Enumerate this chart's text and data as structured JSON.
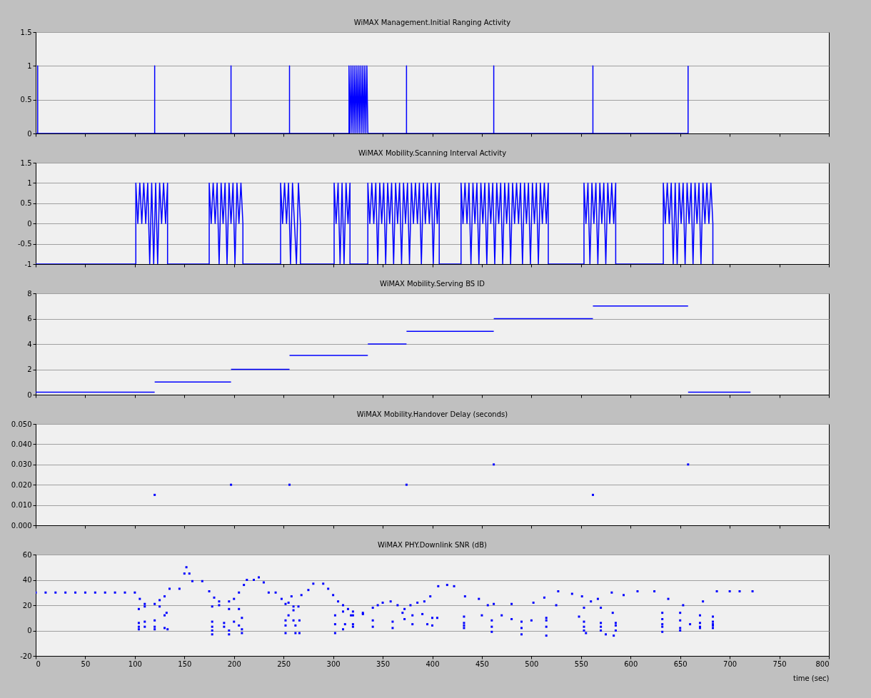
{
  "chart_data": [
    {
      "type": "line",
      "title": "WiMAX Management.Initial Ranging Activity",
      "xlim": [
        0,
        800
      ],
      "xticks": [
        0,
        50,
        100,
        150,
        200,
        250,
        300,
        350,
        400,
        450,
        500,
        550,
        600,
        650,
        700,
        750,
        800
      ],
      "ylim": [
        0,
        1.5
      ],
      "yticks": [
        0,
        0.5,
        1,
        1.5
      ],
      "grid": "y",
      "tick_labels": "y",
      "series": [
        {
          "color": "#0000ff",
          "x": [
            0,
            2,
            2,
            2,
            120,
            120,
            120,
            197,
            197,
            197,
            256,
            256,
            256,
            316,
            316,
            317,
            318,
            319,
            320,
            321,
            322,
            323,
            324,
            325,
            326,
            327,
            328,
            329,
            330,
            331,
            332,
            333,
            334,
            335,
            374,
            374,
            374,
            462,
            462,
            462,
            562,
            562,
            562,
            658,
            658
          ],
          "values": [
            0,
            0,
            1,
            0,
            0,
            1,
            0,
            0,
            1,
            0,
            0,
            1,
            0,
            0,
            1,
            0,
            1,
            0,
            1,
            0,
            1,
            0,
            1,
            0,
            1,
            0,
            1,
            0,
            1,
            0,
            1,
            0,
            1,
            0,
            0,
            1,
            0,
            0,
            1,
            0,
            0,
            1,
            0,
            0,
            1
          ]
        }
      ]
    },
    {
      "type": "line",
      "title": "WiMAX Mobility.Scanning Interval Activity",
      "xlim": [
        0,
        800
      ],
      "xticks": [
        0,
        50,
        100,
        150,
        200,
        250,
        300,
        350,
        400,
        450,
        500,
        550,
        600,
        650,
        700,
        750,
        800
      ],
      "ylim": [
        -1,
        1.5
      ],
      "yticks": [
        -1,
        -0.5,
        0,
        0.5,
        1,
        1.5
      ],
      "grid": "y",
      "tick_labels": "y",
      "series": [
        {
          "color": "#0000ff",
          "x": [
            0,
            101,
            101,
            103,
            105,
            107,
            109,
            111,
            113,
            115,
            117,
            119,
            121,
            123,
            125,
            127,
            129,
            131,
            133,
            133,
            175,
            175,
            177,
            179,
            181,
            183,
            185,
            187,
            189,
            191,
            193,
            195,
            197,
            199,
            201,
            203,
            205,
            207,
            209,
            209,
            247,
            247,
            249,
            251,
            253,
            255,
            257,
            259,
            261,
            263,
            265,
            267,
            267,
            301,
            301,
            303,
            305,
            307,
            309,
            311,
            313,
            315,
            317,
            317,
            335,
            335,
            337,
            339,
            341,
            343,
            345,
            347,
            349,
            351,
            353,
            355,
            357,
            359,
            361,
            363,
            365,
            367,
            369,
            371,
            373,
            375,
            377,
            379,
            381,
            383,
            385,
            387,
            389,
            391,
            393,
            395,
            397,
            399,
            401,
            403,
            405,
            407,
            407,
            429,
            429,
            431,
            433,
            435,
            437,
            439,
            441,
            443,
            445,
            447,
            449,
            451,
            453,
            455,
            457,
            459,
            461,
            463,
            465,
            467,
            469,
            471,
            473,
            475,
            477,
            479,
            481,
            483,
            485,
            487,
            489,
            491,
            493,
            495,
            497,
            499,
            501,
            503,
            505,
            507,
            509,
            511,
            513,
            515,
            517,
            517,
            553,
            553,
            555,
            557,
            559,
            561,
            563,
            565,
            567,
            569,
            571,
            573,
            575,
            577,
            579,
            581,
            583,
            585,
            585,
            633,
            633,
            635,
            637,
            639,
            641,
            643,
            645,
            647,
            649,
            651,
            653,
            655,
            657,
            659,
            661,
            663,
            665,
            667,
            669,
            671,
            673,
            675,
            677,
            679,
            681,
            683,
            683
          ],
          "values": [
            -1,
            -1,
            1,
            0,
            1,
            0,
            1,
            0,
            1,
            -1,
            1,
            -1,
            1,
            -1,
            1,
            0,
            1,
            0,
            1,
            -1,
            -1,
            1,
            0,
            1,
            0,
            1,
            -1,
            1,
            0,
            1,
            -1,
            1,
            0,
            1,
            -1,
            1,
            0,
            1,
            0,
            -1,
            -1,
            1,
            0,
            1,
            0,
            1,
            -1,
            1,
            0,
            -1,
            1,
            0,
            -1,
            -1,
            1,
            0,
            1,
            -1,
            1,
            -1,
            1,
            0,
            1,
            -1,
            -1,
            1,
            0,
            1,
            0,
            1,
            -1,
            1,
            0,
            1,
            -1,
            1,
            0,
            1,
            -1,
            1,
            0,
            1,
            -1,
            1,
            0,
            1,
            -1,
            1,
            0,
            1,
            0,
            1,
            -1,
            1,
            0,
            1,
            0,
            1,
            -1,
            1,
            0,
            1,
            -1,
            -1,
            1,
            0,
            1,
            0,
            1,
            -1,
            1,
            0,
            1,
            -1,
            1,
            0,
            1,
            -1,
            1,
            0,
            1,
            -1,
            1,
            0,
            1,
            -1,
            1,
            0,
            1,
            -1,
            1,
            0,
            1,
            0,
            1,
            -1,
            1,
            0,
            1,
            -1,
            1,
            0,
            1,
            -1,
            1,
            0,
            1,
            0,
            1,
            -1,
            -1,
            1,
            0,
            1,
            -1,
            1,
            0,
            1,
            -1,
            1,
            0,
            1,
            -1,
            1,
            0,
            1,
            0,
            1,
            -1,
            -1,
            1,
            0,
            1,
            0,
            1,
            -1,
            1,
            -1,
            1,
            0,
            1,
            -1,
            1,
            0,
            1,
            -1,
            1,
            0,
            1,
            -1,
            1,
            0,
            1,
            0,
            1,
            0,
            -1
          ]
        }
      ]
    },
    {
      "type": "line",
      "title": "WiMAX Mobility.Serving BS ID",
      "xlim": [
        0,
        800
      ],
      "xticks": [
        0,
        50,
        100,
        150,
        200,
        250,
        300,
        350,
        400,
        450,
        500,
        550,
        600,
        650,
        700,
        750,
        800
      ],
      "ylim": [
        0,
        8
      ],
      "yticks": [
        0,
        2,
        4,
        6,
        8
      ],
      "grid": "y",
      "tick_labels": "y",
      "series": [
        {
          "color": "#0000ff",
          "x": [
            0,
            120
          ],
          "values": [
            0.2,
            0.2
          ]
        },
        {
          "color": "#0000ff",
          "x": [
            120,
            197
          ],
          "values": [
            1,
            1
          ]
        },
        {
          "color": "#0000ff",
          "x": [
            197,
            256
          ],
          "values": [
            2,
            2
          ]
        },
        {
          "color": "#0000ff",
          "x": [
            256,
            335
          ],
          "values": [
            3.1,
            3.1
          ]
        },
        {
          "color": "#0000ff",
          "x": [
            335,
            374
          ],
          "values": [
            4,
            4
          ]
        },
        {
          "color": "#0000ff",
          "x": [
            374,
            462
          ],
          "values": [
            5,
            5
          ]
        },
        {
          "color": "#0000ff",
          "x": [
            462,
            562
          ],
          "values": [
            6,
            6
          ]
        },
        {
          "color": "#0000ff",
          "x": [
            562,
            658
          ],
          "values": [
            7,
            7
          ]
        },
        {
          "color": "#0000ff",
          "x": [
            658,
            721
          ],
          "values": [
            0.2,
            0.2
          ]
        }
      ]
    },
    {
      "type": "scatter",
      "title": "WiMAX Mobility.Handover Delay (seconds)",
      "xlim": [
        0,
        800
      ],
      "xticks": [
        0,
        50,
        100,
        150,
        200,
        250,
        300,
        350,
        400,
        450,
        500,
        550,
        600,
        650,
        700,
        750,
        800
      ],
      "ylim": [
        0,
        0.05
      ],
      "yticks": [
        {
          "value": 0,
          "label": "0.000"
        },
        {
          "value": 0.01,
          "label": "0.010"
        },
        {
          "value": 0.02,
          "label": "0.020"
        },
        {
          "value": 0.03,
          "label": "0.030"
        },
        {
          "value": 0.04,
          "label": "0.040"
        },
        {
          "value": 0.05,
          "label": "0.050"
        }
      ],
      "grid": "y",
      "tick_labels": "y",
      "marker": "square",
      "series": [
        {
          "color": "#0000ff",
          "x": [
            120,
            197,
            256,
            374,
            462,
            562,
            658
          ],
          "values": [
            0.015,
            0.02,
            0.02,
            0.02,
            0.03,
            0.015,
            0.03
          ]
        }
      ]
    },
    {
      "type": "scatter",
      "title": "WiMAX PHY.Downlink SNR (dB)",
      "xlabel": "time (sec)",
      "xlim": [
        0,
        800
      ],
      "xticks": [
        0,
        50,
        100,
        150,
        200,
        250,
        300,
        350,
        400,
        450,
        500,
        550,
        600,
        650,
        700,
        750,
        800
      ],
      "ylim": [
        -20,
        60
      ],
      "yticks": [
        -20,
        0,
        20,
        40,
        60
      ],
      "grid": "y",
      "marker": "square",
      "series": [
        {
          "color": "#0000ff",
          "x": [
            0,
            10,
            20,
            30,
            40,
            50,
            60,
            70,
            80,
            90,
            100,
            105,
            110,
            120,
            125,
            130,
            135,
            145,
            150,
            152,
            155,
            158,
            168,
            175,
            180,
            185,
            195,
            200,
            205,
            210,
            213,
            220,
            225,
            230,
            235,
            242,
            248,
            252,
            255,
            258,
            268,
            275,
            280,
            290,
            295,
            300,
            305,
            310,
            315,
            320,
            330,
            340,
            350,
            358,
            365,
            372,
            378,
            385,
            392,
            398,
            406,
            415,
            422,
            433,
            447,
            456,
            462,
            480,
            502,
            513,
            527,
            541,
            551,
            560,
            567,
            581,
            593,
            607,
            624,
            638,
            653,
            673,
            687,
            700,
            710,
            723,
            104,
            110,
            125,
            132,
            104,
            110,
            120,
            130,
            104,
            110,
            120,
            130,
            104,
            120,
            133,
            178,
            185,
            195,
            205,
            178,
            190,
            200,
            208,
            178,
            190,
            205,
            178,
            195,
            208,
            178,
            195,
            208,
            252,
            260,
            266,
            252,
            262,
            252,
            262,
            266,
            255,
            260,
            260,
            265,
            302,
            310,
            318,
            302,
            312,
            320,
            302,
            310,
            320,
            320,
            330,
            340,
            360,
            380,
            400,
            340,
            360,
            380,
            400,
            345,
            370,
            390,
            405,
            372,
            395,
            432,
            450,
            480,
            515,
            432,
            460,
            490,
            515,
            432,
            460,
            490,
            515,
            432,
            460,
            490,
            515,
            470,
            500,
            553,
            570,
            582,
            553,
            570,
            585,
            553,
            570,
            585,
            553,
            570,
            585,
            555,
            575,
            583,
            548,
            525,
            632,
            650,
            670,
            683,
            632,
            650,
            670,
            683,
            632,
            660,
            683,
            632,
            650,
            670,
            683,
            632,
            650,
            670,
            683
          ],
          "values": [
            30,
            30,
            30,
            30,
            30,
            30,
            30,
            30,
            30,
            30,
            30,
            25,
            21,
            21,
            24,
            27,
            33,
            33,
            45,
            50,
            45,
            39,
            39,
            31,
            26,
            23,
            23,
            25,
            30,
            36,
            40,
            40,
            42,
            38,
            30,
            30,
            25,
            21,
            22,
            27,
            28,
            32,
            37,
            37,
            33,
            28,
            23,
            20,
            17,
            15,
            14,
            18,
            22,
            23,
            20,
            17,
            20,
            22,
            23,
            27,
            35,
            36,
            35,
            27,
            25,
            20,
            21,
            21,
            22,
            26,
            31,
            29,
            27,
            23,
            25,
            30,
            28,
            31,
            31,
            25,
            20,
            23,
            31,
            31,
            31,
            31,
            17,
            19,
            19,
            14,
            6,
            7,
            8,
            12,
            3,
            3,
            3,
            2,
            1,
            1,
            1,
            19,
            20,
            17,
            17,
            7,
            6,
            7,
            10,
            3,
            3,
            4,
            0,
            0,
            1,
            -3,
            -3,
            -2,
            8,
            8,
            8,
            4,
            4,
            -2,
            -2,
            -2,
            12,
            16,
            19,
            19,
            12,
            15,
            12,
            5,
            5,
            5,
            -2,
            1,
            3,
            12,
            13,
            3,
            2,
            5,
            4,
            8,
            7,
            12,
            10,
            20,
            14,
            13,
            10,
            9,
            5,
            11,
            12,
            9,
            10,
            6,
            8,
            7,
            8,
            4,
            3,
            2,
            3,
            2,
            -1,
            -3,
            -4,
            12,
            8,
            18,
            18,
            14,
            7,
            6,
            6,
            3,
            3,
            4,
            0,
            0,
            0,
            -2,
            -3,
            -4,
            11,
            20,
            14,
            14,
            12,
            11,
            9,
            8,
            6,
            7,
            5,
            5,
            5,
            3,
            2,
            3,
            4,
            -1,
            0,
            2,
            2
          ]
        }
      ]
    }
  ]
}
